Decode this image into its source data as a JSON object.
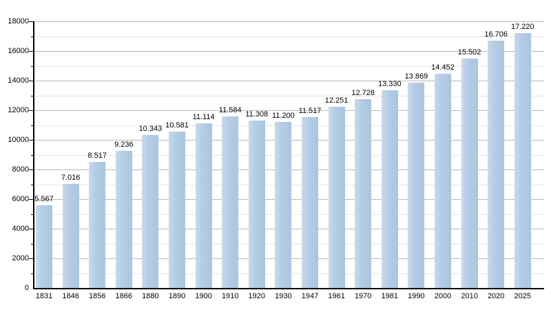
{
  "chart_data": {
    "type": "bar",
    "title": "",
    "xlabel": "",
    "ylabel": "",
    "categories": [
      "1831",
      "1846",
      "1856",
      "1866",
      "1880",
      "1890",
      "1900",
      "1910",
      "1920",
      "1930",
      "1947",
      "1961",
      "1970",
      "1981",
      "1990",
      "2000",
      "2010",
      "2020",
      "2025"
    ],
    "values": [
      5567,
      7016,
      8517,
      9236,
      10343,
      10581,
      11114,
      11584,
      11308,
      11200,
      11517,
      12251,
      12728,
      13330,
      13869,
      14452,
      15502,
      16706,
      17220
    ],
    "value_labels": [
      "5.567",
      "7.016",
      "8.517",
      "9.236",
      "10.343",
      "10.581",
      "11.114",
      "11.584",
      "11.308",
      "11.200",
      "11.517",
      "12.251",
      "12.728",
      "13.330",
      "13.869",
      "14.452",
      "15.502",
      "16.706",
      "17.220"
    ],
    "ylim": [
      0,
      18000
    ],
    "ytick_major_step": 2000,
    "ytick_minor_step": 1000,
    "ytick_labels": [
      "0",
      "2000",
      "4000",
      "6000",
      "8000",
      "10000",
      "12000",
      "14000",
      "16000",
      "18000"
    ],
    "grid": "on",
    "legend": "none",
    "colors": {
      "bar_fill": "#b2cbe4",
      "bar_fill_light": "#c9daeb",
      "bar_fill_dark": "#aac6e0",
      "grid_major": "#b9b9b9",
      "grid_minor": "#e5e5e5",
      "axis": "#000000",
      "text": "#000000",
      "background": "#ffffff"
    }
  }
}
